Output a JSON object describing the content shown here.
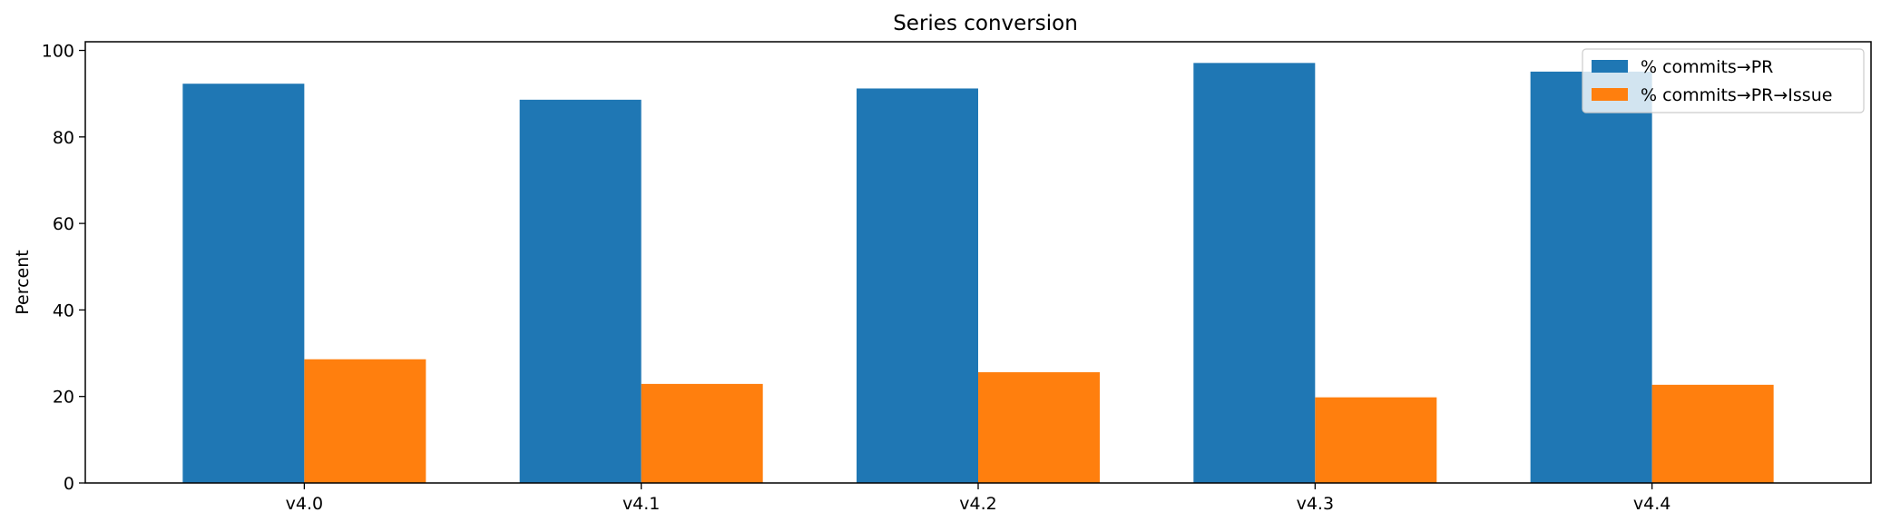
{
  "chart_data": {
    "type": "bar",
    "title": "Series conversion",
    "xlabel": "",
    "ylabel": "Percent",
    "categories": [
      "v4.0",
      "v4.1",
      "v4.2",
      "v4.3",
      "v4.4"
    ],
    "series": [
      {
        "name": "% commits→PR",
        "color": "#1f77b4",
        "values": [
          92.3,
          88.6,
          91.2,
          97.1,
          95.1
        ]
      },
      {
        "name": "% commits→PR→Issue",
        "color": "#ff7f0e",
        "values": [
          28.6,
          22.9,
          25.6,
          19.8,
          22.7
        ]
      }
    ],
    "ylim": [
      0,
      102
    ],
    "yticks": [
      0,
      20,
      40,
      60,
      80,
      100
    ],
    "ytick_labels": [
      "0",
      "20",
      "40",
      "60",
      "80",
      "100"
    ],
    "grid": false,
    "legend_position": "top-right"
  }
}
